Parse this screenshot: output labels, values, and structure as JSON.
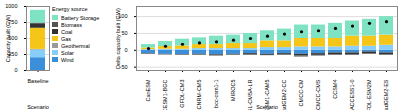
{
  "chart_data": [
    {
      "type": "bar",
      "stacked": true,
      "grid": true,
      "legend": "right",
      "legend_title": "Energy source",
      "x_label": "Scenario",
      "y_label": "Capacity built (GW)",
      "categories": [
        "Baseline"
      ],
      "ylim": [
        0,
        1000
      ],
      "yticks": [
        0,
        250,
        500,
        750,
        1000
      ],
      "series": [
        {
          "name": "Battery Storage",
          "color": "#7fe3c3",
          "values": [
            200
          ]
        },
        {
          "name": "Biomass",
          "color": "#555555",
          "values": [
            20
          ]
        },
        {
          "name": "Coal",
          "color": "#333333",
          "values": [
            60
          ]
        },
        {
          "name": "Gas",
          "color": "#f5c518",
          "values": [
            330
          ]
        },
        {
          "name": "Geothermal",
          "color": "#9a9a9a",
          "values": [
            10
          ]
        },
        {
          "name": "Solar",
          "color": "#87cefa",
          "values": [
            120
          ]
        },
        {
          "name": "Wind",
          "color": "#3b8fd9",
          "values": [
            200
          ]
        }
      ]
    },
    {
      "type": "bar",
      "stacked": true,
      "grid": true,
      "x_label": "Scenario",
      "y_label": "Delta capacity built (GW)",
      "categories": [
        "CanESM",
        "CESM1-BGC",
        "GFDL-CM3",
        "CNRM-CM5",
        "bcc-csm1-1",
        "MIROC5",
        "IPSL-CM5A-LR",
        "CESM1-CAM5",
        "HadGEM2-CC",
        "CMCC-CM",
        "CMCC-CMS",
        "CCSM4",
        "ACCESS1-0",
        "GFDL-ESM2M",
        "HadGEM2-ES"
      ],
      "ylim": [
        -60,
        130
      ],
      "yticks": [
        -50,
        0,
        50,
        100
      ],
      "series": [
        {
          "name": "Battery Storage",
          "color": "#7fe3c3",
          "values": [
            10,
            15,
            20,
            20,
            25,
            25,
            30,
            30,
            35,
            40,
            40,
            45,
            45,
            50,
            55
          ]
        },
        {
          "name": "Biomass",
          "color": "#555555",
          "values": [
            -2,
            -2,
            -2,
            -1,
            -2,
            -1,
            -2,
            -1,
            -2,
            -3,
            -2,
            -2,
            -2,
            -2,
            -2
          ]
        },
        {
          "name": "Coal",
          "color": "#333333",
          "values": [
            0,
            0,
            0,
            -2,
            -2,
            -2,
            -3,
            -3,
            -3,
            -5,
            -5,
            -5,
            -5,
            -5,
            -5
          ]
        },
        {
          "name": "Gas",
          "color": "#f5c518",
          "values": [
            5,
            8,
            10,
            12,
            12,
            15,
            15,
            20,
            20,
            25,
            25,
            25,
            30,
            30,
            30
          ]
        },
        {
          "name": "Geothermal",
          "color": "#9a9a9a",
          "values": [
            0,
            0,
            0,
            0,
            0,
            0,
            0,
            0,
            0,
            0,
            0,
            0,
            0,
            0,
            0
          ]
        },
        {
          "name": "Solar",
          "color": "#87cefa",
          "values": [
            2,
            3,
            3,
            5,
            5,
            5,
            5,
            8,
            8,
            10,
            10,
            10,
            12,
            12,
            15
          ]
        },
        {
          "name": "Wind",
          "color": "#3b8fd9",
          "values": [
            -10,
            -12,
            -13,
            -12,
            -13,
            -12,
            -10,
            -12,
            -10,
            -12,
            -10,
            -8,
            -8,
            -5,
            -8
          ]
        }
      ],
      "net": {
        "color": "#000000",
        "marker": "circle",
        "values": [
          5,
          12,
          18,
          22,
          25,
          30,
          35,
          42,
          48,
          55,
          58,
          65,
          72,
          80,
          85
        ]
      }
    }
  ]
}
